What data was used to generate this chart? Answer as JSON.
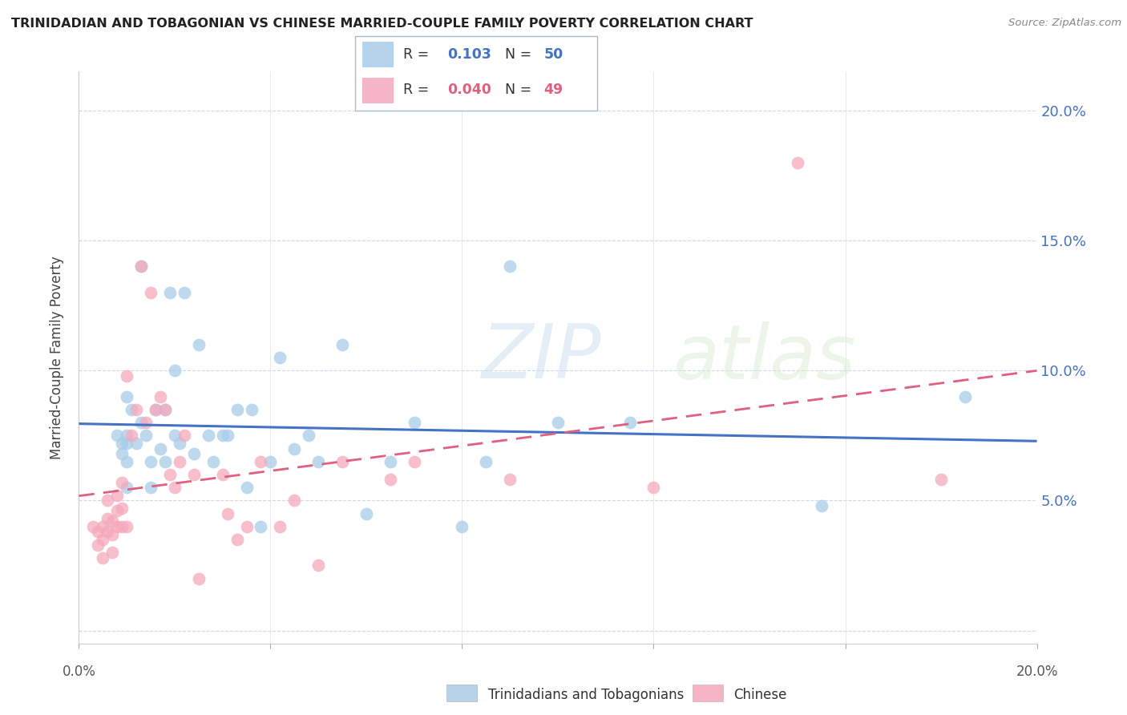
{
  "title": "TRINIDADIAN AND TOBAGONIAN VS CHINESE MARRIED-COUPLE FAMILY POVERTY CORRELATION CHART",
  "source": "Source: ZipAtlas.com",
  "ylabel": "Married-Couple Family Poverty",
  "watermark_zip": "ZIP",
  "watermark_atlas": "atlas",
  "xlim": [
    0.0,
    0.2
  ],
  "ylim": [
    -0.005,
    0.215
  ],
  "yticks": [
    0.0,
    0.05,
    0.1,
    0.15,
    0.2
  ],
  "ytick_labels": [
    "",
    "5.0%",
    "10.0%",
    "15.0%",
    "20.0%"
  ],
  "xtick_labels": [
    "0.0%",
    "",
    "",
    "",
    "",
    "20.0%"
  ],
  "xticks": [
    0.0,
    0.04,
    0.08,
    0.12,
    0.16,
    0.2
  ],
  "r_blue": "0.103",
  "n_blue": "50",
  "r_pink": "0.040",
  "n_pink": "49",
  "blue_color": "#a8cce8",
  "pink_color": "#f5a8bc",
  "line_blue": "#4472c4",
  "line_pink": "#e06080",
  "background_color": "#ffffff",
  "grid_color": "#d0d8e8",
  "title_color": "#222222",
  "right_axis_color": "#4472c4",
  "label1": "Trinidadians and Tobagonians",
  "label2": "Chinese",
  "blue_scatter_x": [
    0.008,
    0.009,
    0.009,
    0.01,
    0.01,
    0.01,
    0.01,
    0.01,
    0.011,
    0.012,
    0.013,
    0.013,
    0.014,
    0.015,
    0.015,
    0.016,
    0.017,
    0.018,
    0.018,
    0.019,
    0.02,
    0.02,
    0.021,
    0.022,
    0.024,
    0.025,
    0.027,
    0.028,
    0.03,
    0.031,
    0.033,
    0.035,
    0.036,
    0.038,
    0.04,
    0.042,
    0.045,
    0.048,
    0.05,
    0.055,
    0.06,
    0.065,
    0.07,
    0.08,
    0.085,
    0.09,
    0.1,
    0.115,
    0.155,
    0.185
  ],
  "blue_scatter_y": [
    0.075,
    0.072,
    0.068,
    0.09,
    0.075,
    0.072,
    0.065,
    0.055,
    0.085,
    0.072,
    0.14,
    0.08,
    0.075,
    0.065,
    0.055,
    0.085,
    0.07,
    0.085,
    0.065,
    0.13,
    0.1,
    0.075,
    0.072,
    0.13,
    0.068,
    0.11,
    0.075,
    0.065,
    0.075,
    0.075,
    0.085,
    0.055,
    0.085,
    0.04,
    0.065,
    0.105,
    0.07,
    0.075,
    0.065,
    0.11,
    0.045,
    0.065,
    0.08,
    0.04,
    0.065,
    0.14,
    0.08,
    0.08,
    0.048,
    0.09
  ],
  "pink_scatter_x": [
    0.003,
    0.004,
    0.004,
    0.005,
    0.005,
    0.005,
    0.006,
    0.006,
    0.006,
    0.007,
    0.007,
    0.007,
    0.008,
    0.008,
    0.008,
    0.009,
    0.009,
    0.009,
    0.01,
    0.01,
    0.011,
    0.012,
    0.013,
    0.014,
    0.015,
    0.016,
    0.017,
    0.018,
    0.019,
    0.02,
    0.021,
    0.022,
    0.024,
    0.025,
    0.03,
    0.031,
    0.033,
    0.035,
    0.038,
    0.042,
    0.045,
    0.05,
    0.055,
    0.065,
    0.07,
    0.09,
    0.12,
    0.15,
    0.18
  ],
  "pink_scatter_y": [
    0.04,
    0.038,
    0.033,
    0.04,
    0.035,
    0.028,
    0.05,
    0.043,
    0.038,
    0.042,
    0.037,
    0.03,
    0.052,
    0.046,
    0.04,
    0.057,
    0.047,
    0.04,
    0.098,
    0.04,
    0.075,
    0.085,
    0.14,
    0.08,
    0.13,
    0.085,
    0.09,
    0.085,
    0.06,
    0.055,
    0.065,
    0.075,
    0.06,
    0.02,
    0.06,
    0.045,
    0.035,
    0.04,
    0.065,
    0.04,
    0.05,
    0.025,
    0.065,
    0.058,
    0.065,
    0.058,
    0.055,
    0.18,
    0.058
  ]
}
